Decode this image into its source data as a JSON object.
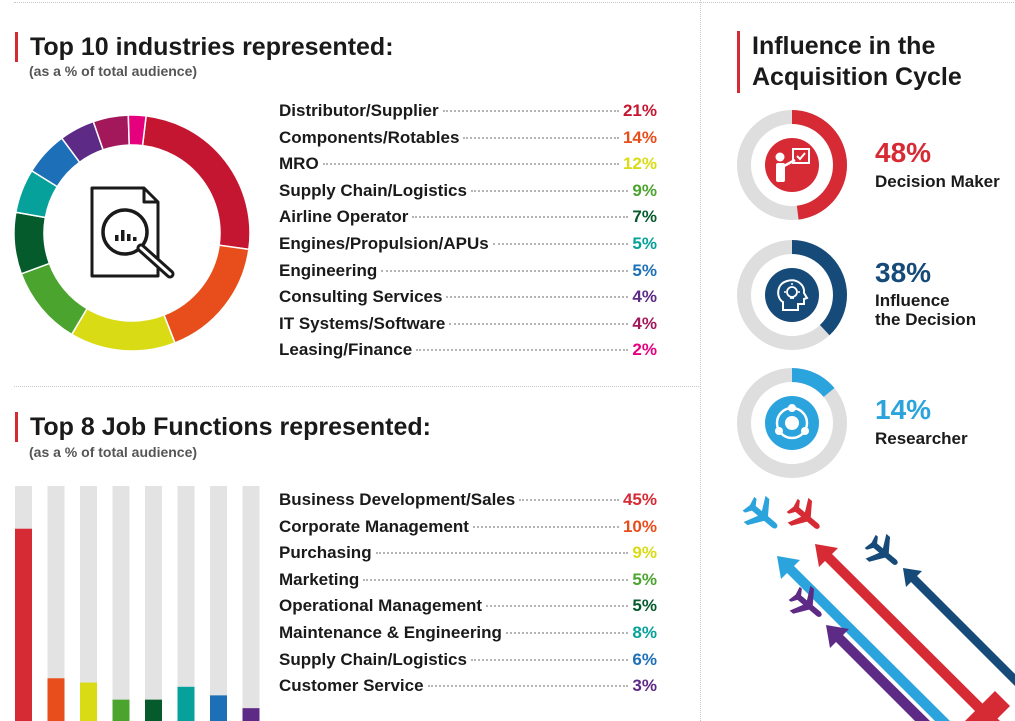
{
  "industries": {
    "title": "Top 10 industries represented:",
    "subtitle": "(as a % of total audience)",
    "icon": "document-magnifier-icon"
  },
  "jobs": {
    "title": "Top 8 Job Functions represented:",
    "subtitle": "(as a % of total audience)"
  },
  "influence": {
    "title_line1": "Influence in the",
    "title_line2": "Acquisition Cycle",
    "items": [
      {
        "pct": "48%",
        "label1": "Decision Maker",
        "label2": "",
        "value": 48,
        "color": "#d62a35",
        "icon": "presenter-icon"
      },
      {
        "pct": "38%",
        "label1": "Influence",
        "label2": "the Decision",
        "value": 38,
        "color": "#164a78",
        "icon": "lightbulb-head-icon"
      },
      {
        "pct": "14%",
        "label1": "Researcher",
        "label2": "",
        "value": 14,
        "color": "#2ba3dd",
        "icon": "network-icon"
      }
    ]
  },
  "chart_data": [
    {
      "type": "pie",
      "title": "Top 10 industries represented:",
      "subtitle": "(as a % of total audience)",
      "categories": [
        "Distributor/Supplier",
        "Components/Rotables",
        "MRO",
        "Supply Chain/Logistics",
        "Airline Operator",
        "Engines/Propulsion/APUs",
        "Engineering",
        "Consulting Services",
        "IT Systems/Software",
        "Leasing/Finance"
      ],
      "values": [
        21,
        14,
        12,
        9,
        7,
        5,
        5,
        4,
        4,
        2
      ],
      "labels": [
        "21%",
        "14%",
        "12%",
        "9%",
        "7%",
        "5%",
        "5%",
        "4%",
        "4%",
        "2%"
      ],
      "colors": [
        "#c51631",
        "#e84e1b",
        "#d9dc15",
        "#4ba42e",
        "#065b2d",
        "#06a19a",
        "#1d70b7",
        "#5d2a86",
        "#a2185b",
        "#e6007e"
      ]
    },
    {
      "type": "bar",
      "title": "Top 8 Job Functions represented:",
      "subtitle": "(as a % of total audience)",
      "categories": [
        "Business Development/Sales",
        "Corporate Management",
        "Purchasing",
        "Marketing",
        "Operational Management",
        "Maintenance & Engineering",
        "Supply Chain/Logistics",
        "Customer Service"
      ],
      "values": [
        45,
        10,
        9,
        5,
        5,
        8,
        6,
        3
      ],
      "labels": [
        "45%",
        "10%",
        "9%",
        "5%",
        "5%",
        "8%",
        "6%",
        "3%"
      ],
      "colors": [
        "#d62a35",
        "#e84e1b",
        "#d9dc15",
        "#4ba42e",
        "#065b2d",
        "#06a19a",
        "#1d70b7",
        "#5d2a86"
      ],
      "ylim": [
        0,
        55
      ]
    }
  ]
}
